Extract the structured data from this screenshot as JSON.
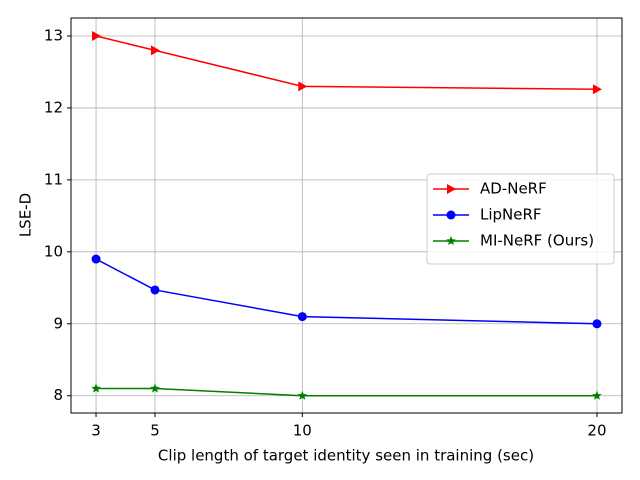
{
  "chart_data": {
    "type": "line",
    "x_label": "Clip length of target identity seen in training (sec)",
    "y_label": "LSE-D",
    "x": [
      3,
      5,
      10,
      20
    ],
    "series": [
      {
        "name": "AD-NeRF",
        "color": "#ff0000",
        "marker": "triangle-right",
        "values": [
          13.0,
          12.8,
          12.3,
          12.26
        ]
      },
      {
        "name": "LipNeRF",
        "color": "#0000ff",
        "marker": "circle",
        "values": [
          9.9,
          9.47,
          9.1,
          9.0
        ]
      },
      {
        "name": "MI-NeRF (Ours)",
        "color": "#008000",
        "marker": "star",
        "values": [
          8.1,
          8.1,
          8.0,
          8.0
        ]
      }
    ],
    "xlim": [
      2.15,
      20.85
    ],
    "xticks": [
      3,
      5,
      10,
      20
    ],
    "ylim": [
      7.76,
      13.25
    ],
    "yticks": [
      8,
      9,
      10,
      11,
      12,
      13
    ],
    "grid": true,
    "legend": "right"
  }
}
